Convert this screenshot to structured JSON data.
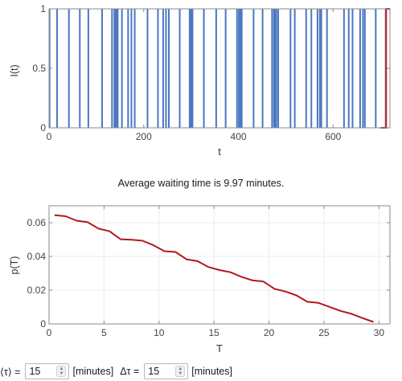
{
  "chart_data": [
    {
      "type": "line",
      "xlabel": "t",
      "ylabel": "I(t)",
      "xlim": [
        0,
        720
      ],
      "ylim": [
        0,
        1
      ],
      "xticks": [
        "0",
        "200",
        "400",
        "600"
      ],
      "yticks": [
        "0",
        "0.5",
        "1"
      ],
      "grid": false,
      "series": [
        {
          "color": "#4a78c2",
          "spikes": [
            1,
            17,
            42,
            65,
            83,
            112,
            133,
            138,
            140,
            142,
            145,
            154,
            167,
            174,
            181,
            208,
            230,
            241,
            247,
            253,
            276,
            297,
            300,
            303,
            327,
            353,
            373,
            397,
            401,
            403,
            405,
            407,
            432,
            451,
            471,
            475,
            478,
            480,
            484,
            510,
            519,
            543,
            554,
            567,
            572,
            575,
            587,
            623,
            633,
            641,
            657,
            663,
            667,
            690,
            711
          ]
        },
        {
          "color": "#c62026",
          "x": [
            700,
            712,
            712,
            720
          ],
          "y": [
            0,
            0,
            1,
            1
          ]
        }
      ]
    },
    {
      "type": "line",
      "xlabel": "T",
      "ylabel": "p(T)",
      "xlim": [
        0,
        31
      ],
      "ylim": [
        0,
        0.07
      ],
      "xticks": [
        "0",
        "5",
        "10",
        "15",
        "20",
        "25",
        "30"
      ],
      "yticks": [
        "0",
        "0.02",
        "0.04",
        "0.06"
      ],
      "grid": true,
      "series": [
        {
          "color": "#b5171c",
          "x": [
            0.5,
            1.5,
            2.5,
            3.5,
            4.5,
            5.5,
            6.5,
            7.5,
            8.5,
            9.5,
            10.5,
            11.5,
            12.5,
            13.5,
            14.5,
            15.5,
            16.5,
            17.5,
            18.5,
            19.5,
            20.5,
            21.5,
            22.5,
            23.5,
            24.5,
            25.5,
            26.5,
            27.5,
            28.5,
            29.5
          ],
          "y": [
            0.0645,
            0.0638,
            0.0612,
            0.0603,
            0.0565,
            0.0549,
            0.0502,
            0.0499,
            0.0493,
            0.0466,
            0.0431,
            0.0426,
            0.0383,
            0.0372,
            0.0337,
            0.0319,
            0.0306,
            0.0279,
            0.0258,
            0.0251,
            0.0208,
            0.0192,
            0.0169,
            0.0131,
            0.0125,
            0.0101,
            0.0077,
            0.006,
            0.0035,
            0.0012
          ]
        }
      ]
    }
  ],
  "summary": "Average waiting time is 9.97 minutes.",
  "controls": {
    "tau_label": "⟨τ⟩ =",
    "tau_value": "15",
    "tau_unit": "[minutes]",
    "dtau_label": "Δτ =",
    "dtau_value": "15",
    "dtau_unit": "[minutes]"
  },
  "icons": {
    "spinner": "up-down-chevron-icon"
  }
}
